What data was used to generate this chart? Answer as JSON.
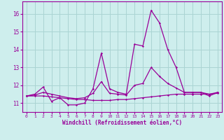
{
  "xlabel": "Windchill (Refroidissement éolien,°C)",
  "xlim": [
    -0.5,
    23.5
  ],
  "ylim": [
    10.5,
    16.7
  ],
  "yticks": [
    11,
    12,
    13,
    14,
    15,
    16
  ],
  "xticks": [
    0,
    1,
    2,
    3,
    4,
    5,
    6,
    7,
    8,
    9,
    10,
    11,
    12,
    13,
    14,
    15,
    16,
    17,
    18,
    19,
    20,
    21,
    22,
    23
  ],
  "bg_color": "#ceeeed",
  "grid_color": "#aad4d3",
  "line_color": "#990099",
  "series1_x": [
    0,
    1,
    2,
    3,
    4,
    5,
    6,
    7,
    8,
    9,
    10,
    11,
    12,
    13,
    14,
    15,
    16,
    17,
    18,
    19,
    20,
    21,
    22,
    23
  ],
  "series1_y": [
    11.4,
    11.5,
    11.9,
    11.1,
    11.3,
    10.9,
    10.9,
    11.0,
    11.8,
    13.8,
    11.8,
    11.6,
    11.5,
    14.3,
    14.2,
    16.2,
    15.5,
    14.0,
    13.0,
    11.6,
    11.6,
    11.6,
    11.4,
    11.6
  ],
  "series2_x": [
    0,
    1,
    2,
    3,
    4,
    5,
    6,
    7,
    8,
    9,
    10,
    11,
    12,
    13,
    14,
    15,
    16,
    17,
    18,
    19,
    20,
    21,
    22,
    23
  ],
  "series2_y": [
    11.4,
    11.4,
    11.4,
    11.35,
    11.3,
    11.25,
    11.2,
    11.2,
    11.15,
    11.15,
    11.15,
    11.2,
    11.2,
    11.25,
    11.3,
    11.35,
    11.4,
    11.45,
    11.5,
    11.5,
    11.5,
    11.5,
    11.5,
    11.55
  ],
  "series3_x": [
    0,
    1,
    2,
    3,
    4,
    5,
    6,
    7,
    8,
    9,
    10,
    11,
    12,
    13,
    14,
    15,
    16,
    17,
    18,
    19,
    20,
    21,
    22,
    23
  ],
  "series3_y": [
    11.4,
    11.45,
    11.6,
    11.5,
    11.4,
    11.3,
    11.25,
    11.3,
    11.55,
    12.2,
    11.55,
    11.5,
    11.45,
    12.0,
    12.1,
    13.0,
    12.5,
    12.1,
    11.85,
    11.6,
    11.6,
    11.6,
    11.5,
    11.6
  ]
}
